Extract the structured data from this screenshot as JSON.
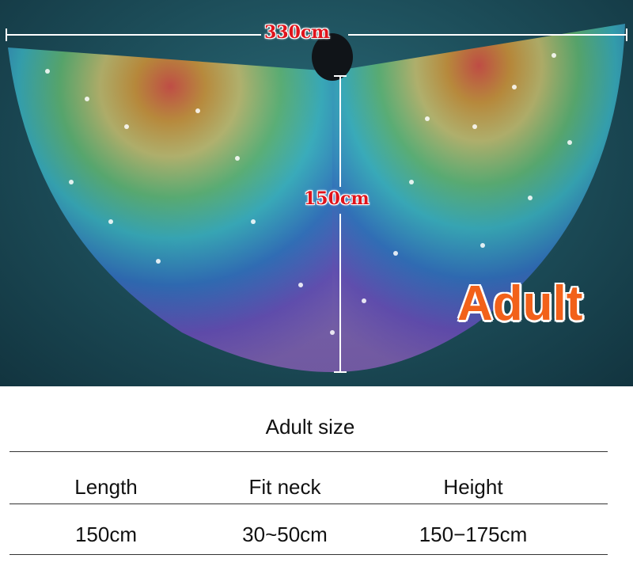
{
  "photo": {
    "width_label": "330cm",
    "height_label": "150cm",
    "size_badge": "Adult"
  },
  "table": {
    "title": "Adult size",
    "headers": [
      "Length",
      "Fit neck",
      "Height"
    ],
    "rows": [
      [
        "150cm",
        "30~50cm",
        "150−175cm"
      ]
    ]
  },
  "colors": {
    "background": "#1c4c58",
    "dimension_label": "#e0141c",
    "badge": "#f2611a"
  }
}
